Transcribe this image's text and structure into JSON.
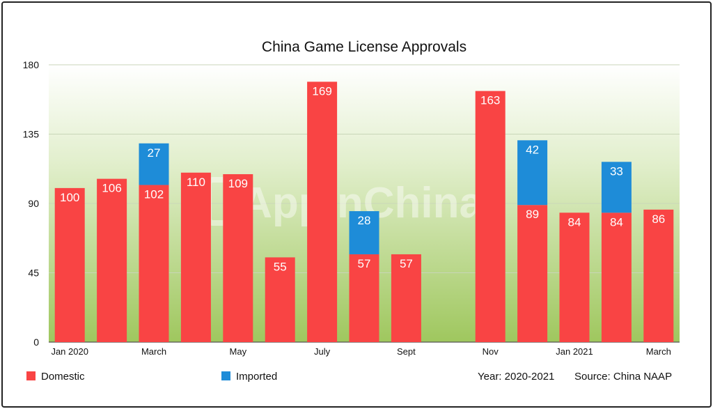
{
  "chart_data": {
    "type": "bar",
    "stacked": true,
    "title": "China Game License Approvals",
    "xlabel": "",
    "ylabel": "",
    "ylim": [
      0,
      180
    ],
    "yticks": [
      0,
      45,
      90,
      135,
      180
    ],
    "grid": true,
    "categories": [
      "Jan 2020",
      "",
      "March",
      "",
      "May",
      "",
      "July",
      "",
      "Sept",
      "",
      "Nov",
      "",
      "Jan 2021",
      "",
      "March"
    ],
    "series": [
      {
        "name": "Domestic",
        "color": "#f94444",
        "values": [
          100,
          106,
          102,
          110,
          109,
          55,
          169,
          57,
          57,
          null,
          163,
          89,
          84,
          84,
          86
        ]
      },
      {
        "name": "Imported",
        "color": "#1e8cd8",
        "values": [
          null,
          null,
          27,
          null,
          null,
          null,
          null,
          28,
          null,
          null,
          null,
          42,
          null,
          33,
          null
        ]
      }
    ],
    "legend_position": "bottom",
    "annotations": [
      "Year: 2020-2021",
      "Source: China NAAP"
    ],
    "watermark": "AppInChina"
  }
}
